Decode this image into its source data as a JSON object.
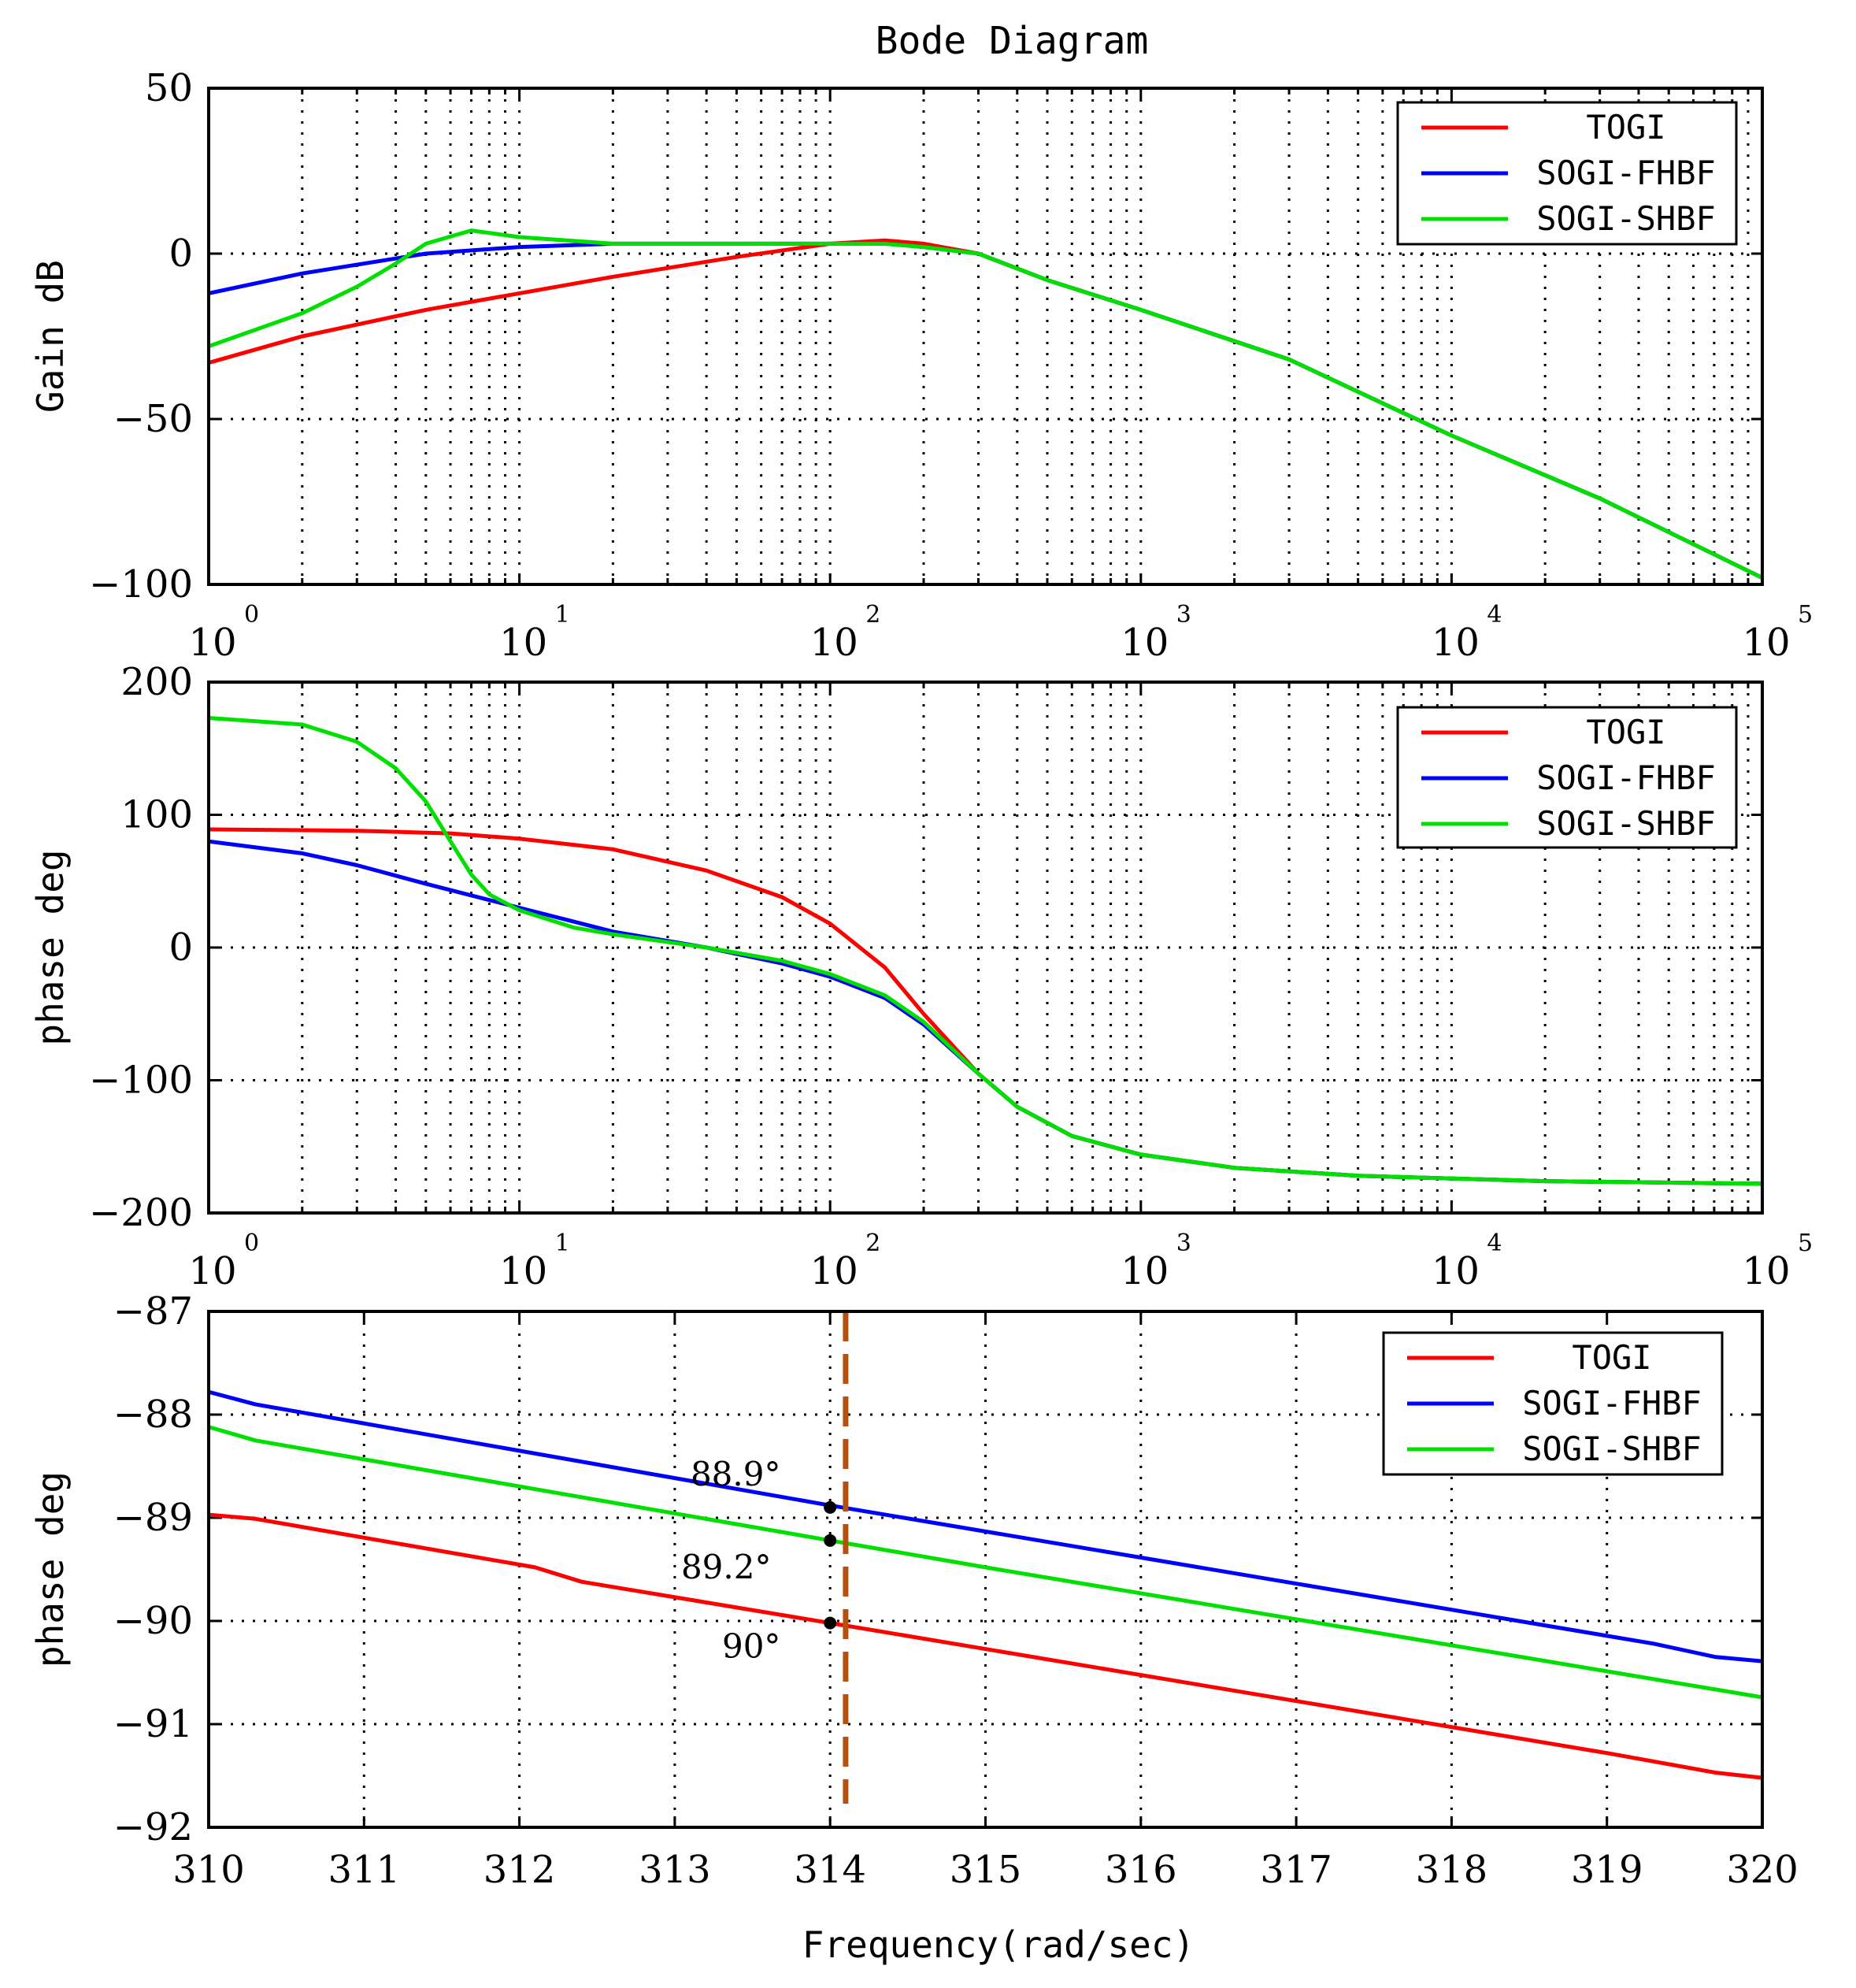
{
  "title": "Bode Diagram",
  "xlabel": "Frequency(rad/sec)",
  "colors": {
    "TOGI": "#ff0000",
    "SOGI-FHBF": "#0000ff",
    "SOGI-SHBF": "#00e000",
    "marker_line": "#b5500f"
  },
  "chart_data": [
    {
      "type": "line",
      "name": "gain",
      "ylabel": "Gain dB",
      "xscale": "log",
      "xlim": [
        1,
        100000
      ],
      "ylim": [
        -100,
        50
      ],
      "yticks": [
        50,
        0,
        -50,
        -100
      ],
      "ytick_labels": [
        "50",
        "0",
        "−50",
        "−100"
      ],
      "xticks": [
        1,
        10,
        100,
        1000,
        10000,
        100000
      ],
      "xtick_bases": [
        "10",
        "10",
        "10",
        "10",
        "10",
        "10"
      ],
      "xtick_exps": [
        "0",
        "1",
        "2",
        "3",
        "4",
        "5"
      ],
      "grid": true,
      "legend_position": "top-right",
      "series": [
        {
          "name": "TOGI",
          "x": [
            1,
            2,
            5,
            10,
            20,
            50,
            100,
            150,
            200,
            300,
            500,
            1000,
            3000,
            10000,
            30000,
            100000
          ],
          "y": [
            -33,
            -25,
            -17,
            -12,
            -7,
            -1,
            3,
            4,
            3,
            0,
            -8,
            -17,
            -32,
            -55,
            -74,
            -98
          ]
        },
        {
          "name": "SOGI-FHBF",
          "x": [
            1,
            2,
            5,
            10,
            20,
            50,
            100,
            150,
            200,
            300,
            500,
            1000,
            3000,
            10000,
            30000,
            100000
          ],
          "y": [
            -12,
            -6,
            0,
            2,
            3,
            3,
            3,
            3,
            2,
            0,
            -8,
            -17,
            -32,
            -55,
            -74,
            -98
          ]
        },
        {
          "name": "SOGI-SHBF",
          "x": [
            1,
            2,
            3,
            4,
            5,
            7,
            10,
            20,
            50,
            100,
            150,
            200,
            300,
            500,
            1000,
            3000,
            10000,
            30000,
            100000
          ],
          "y": [
            -28,
            -18,
            -10,
            -3,
            3,
            7,
            5,
            3,
            3,
            3,
            3,
            2,
            0,
            -8,
            -17,
            -32,
            -55,
            -74,
            -98
          ]
        }
      ]
    },
    {
      "type": "line",
      "name": "phase",
      "ylabel": "phase deg",
      "xscale": "log",
      "xlim": [
        1,
        100000
      ],
      "ylim": [
        -200,
        200
      ],
      "yticks": [
        200,
        100,
        0,
        -100,
        -200
      ],
      "ytick_labels": [
        "200",
        "100",
        "0",
        "−100",
        "−200"
      ],
      "xticks": [
        1,
        10,
        100,
        1000,
        10000,
        100000
      ],
      "xtick_bases": [
        "10",
        "10",
        "10",
        "10",
        "10",
        "10"
      ],
      "xtick_exps": [
        "0",
        "1",
        "2",
        "3",
        "4",
        "5"
      ],
      "grid": true,
      "legend_position": "top-right",
      "series": [
        {
          "name": "TOGI",
          "x": [
            1,
            3,
            6,
            10,
            20,
            40,
            70,
            100,
            150,
            200,
            300,
            400,
            600,
            1000,
            2000,
            5000,
            20000,
            100000
          ],
          "y": [
            89,
            88,
            86,
            82,
            74,
            58,
            38,
            18,
            -15,
            -50,
            -95,
            -120,
            -142,
            -156,
            -166,
            -172,
            -176,
            -178
          ]
        },
        {
          "name": "SOGI-FHBF",
          "x": [
            1,
            2,
            3,
            5,
            10,
            20,
            40,
            70,
            100,
            150,
            200,
            300,
            400,
            600,
            1000,
            2000,
            5000,
            20000,
            100000
          ],
          "y": [
            80,
            71,
            62,
            48,
            30,
            12,
            0,
            -12,
            -22,
            -38,
            -58,
            -95,
            -120,
            -142,
            -156,
            -166,
            -172,
            -176,
            -178
          ]
        },
        {
          "name": "SOGI-SHBF",
          "x": [
            1,
            2,
            3,
            4,
            5,
            6,
            7,
            8,
            10,
            15,
            20,
            40,
            70,
            100,
            150,
            200,
            300,
            400,
            600,
            1000,
            2000,
            5000,
            20000,
            100000
          ],
          "y": [
            173,
            168,
            155,
            135,
            110,
            80,
            55,
            40,
            28,
            15,
            10,
            0,
            -10,
            -20,
            -36,
            -56,
            -95,
            -120,
            -142,
            -156,
            -166,
            -172,
            -176,
            -178
          ]
        }
      ]
    },
    {
      "type": "line",
      "name": "phase-zoom",
      "ylabel": "phase deg",
      "xscale": "linear",
      "xlim": [
        310,
        320
      ],
      "ylim": [
        -92,
        -87
      ],
      "yticks": [
        -87,
        -88,
        -89,
        -90,
        -91,
        -92
      ],
      "ytick_labels": [
        "−87",
        "−88",
        "−89",
        "−90",
        "−91",
        "−92"
      ],
      "xticks": [
        310,
        311,
        312,
        313,
        314,
        315,
        316,
        317,
        318,
        319,
        320
      ],
      "xtick_labels": [
        "310",
        "311",
        "312",
        "313",
        "314",
        "315",
        "316",
        "317",
        "318",
        "319",
        "320"
      ],
      "grid": true,
      "legend_position": "top-right",
      "series": [
        {
          "name": "TOGI",
          "x": [
            310,
            310.3,
            312.1,
            312.4,
            314,
            319,
            319.7,
            320
          ],
          "y": [
            -88.97,
            -89.01,
            -89.48,
            -89.62,
            -90.02,
            -91.28,
            -91.47,
            -91.52
          ]
        },
        {
          "name": "SOGI-FHBF",
          "x": [
            310,
            310.3,
            314,
            319.3,
            319.7,
            320
          ],
          "y": [
            -87.78,
            -87.9,
            -88.88,
            -90.22,
            -90.35,
            -90.39
          ]
        },
        {
          "name": "SOGI-SHBF",
          "x": [
            310,
            310.3,
            314,
            315,
            320
          ],
          "y": [
            -88.12,
            -88.25,
            -89.22,
            -89.48,
            -90.74
          ]
        }
      ],
      "marker_x": 314.1,
      "annotations": [
        {
          "label": "88.9°",
          "x": 314.0,
          "y": -88.9
        },
        {
          "label": "89.2°",
          "x": 314.0,
          "y": -89.22
        },
        {
          "label": "90°",
          "x": 314.0,
          "y": -90.02
        }
      ]
    }
  ]
}
